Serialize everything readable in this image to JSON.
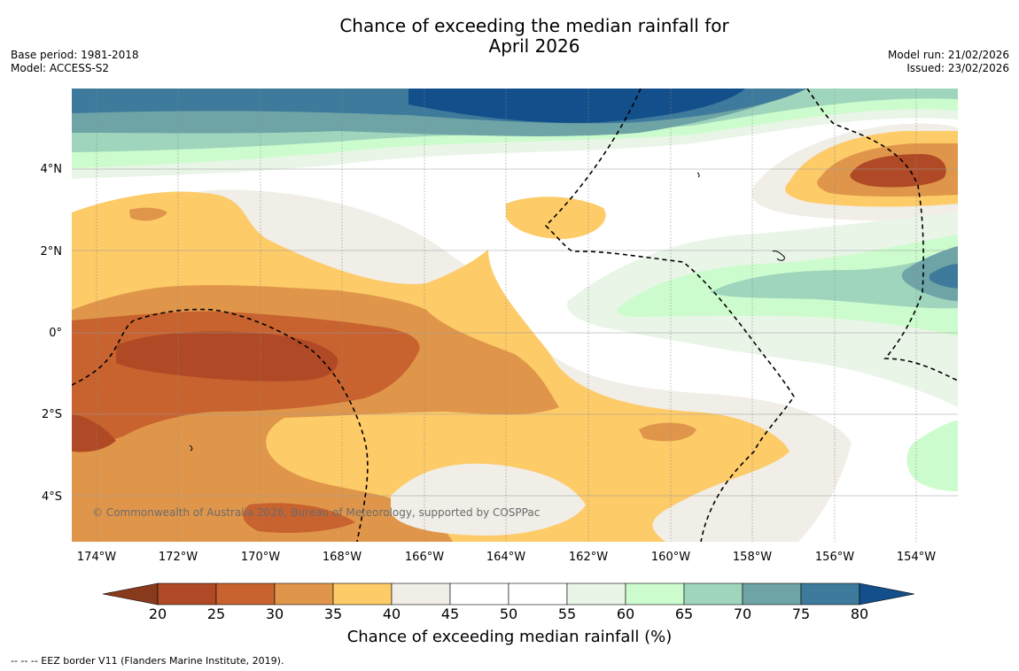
{
  "header": {
    "title_line1": "Chance of exceeding the median rainfall for",
    "title_line2": "April 2026",
    "base_period": "Base period: 1981-2018",
    "model": "Model: ACCESS-S2",
    "model_run": "Model run: 21/02/2026",
    "issued": "Issued: 23/02/2026"
  },
  "map": {
    "copyright": "© Commonwealth of Australia 2026, Bureau of Meteorology, supported by COSPPac",
    "lat_labels": [
      "4°N",
      "2°N",
      "0°",
      "2°S",
      "4°S"
    ],
    "lon_labels": [
      "174°W",
      "172°W",
      "170°W",
      "168°W",
      "166°W",
      "164°W",
      "162°W",
      "160°W",
      "158°W",
      "156°W",
      "154°W"
    ]
  },
  "colorbar": {
    "ticks": [
      "20",
      "25",
      "30",
      "35",
      "40",
      "45",
      "50",
      "55",
      "60",
      "65",
      "70",
      "75",
      "80"
    ],
    "colors": [
      "#8a3a1c",
      "#b04a26",
      "#c8632f",
      "#e0964a",
      "#fdcb67",
      "#f1ede7",
      "#ffffff",
      "#ffffff",
      "#e9f5e7",
      "#ccfccd",
      "#9fd5bc",
      "#6ea4a6",
      "#3e7a9b",
      "#134f8a"
    ],
    "title": "Chance of exceeding median rainfall (%)"
  },
  "footnote": "--  --  -- EEZ border V11 (Flanders Marine Institute, 2019)."
}
